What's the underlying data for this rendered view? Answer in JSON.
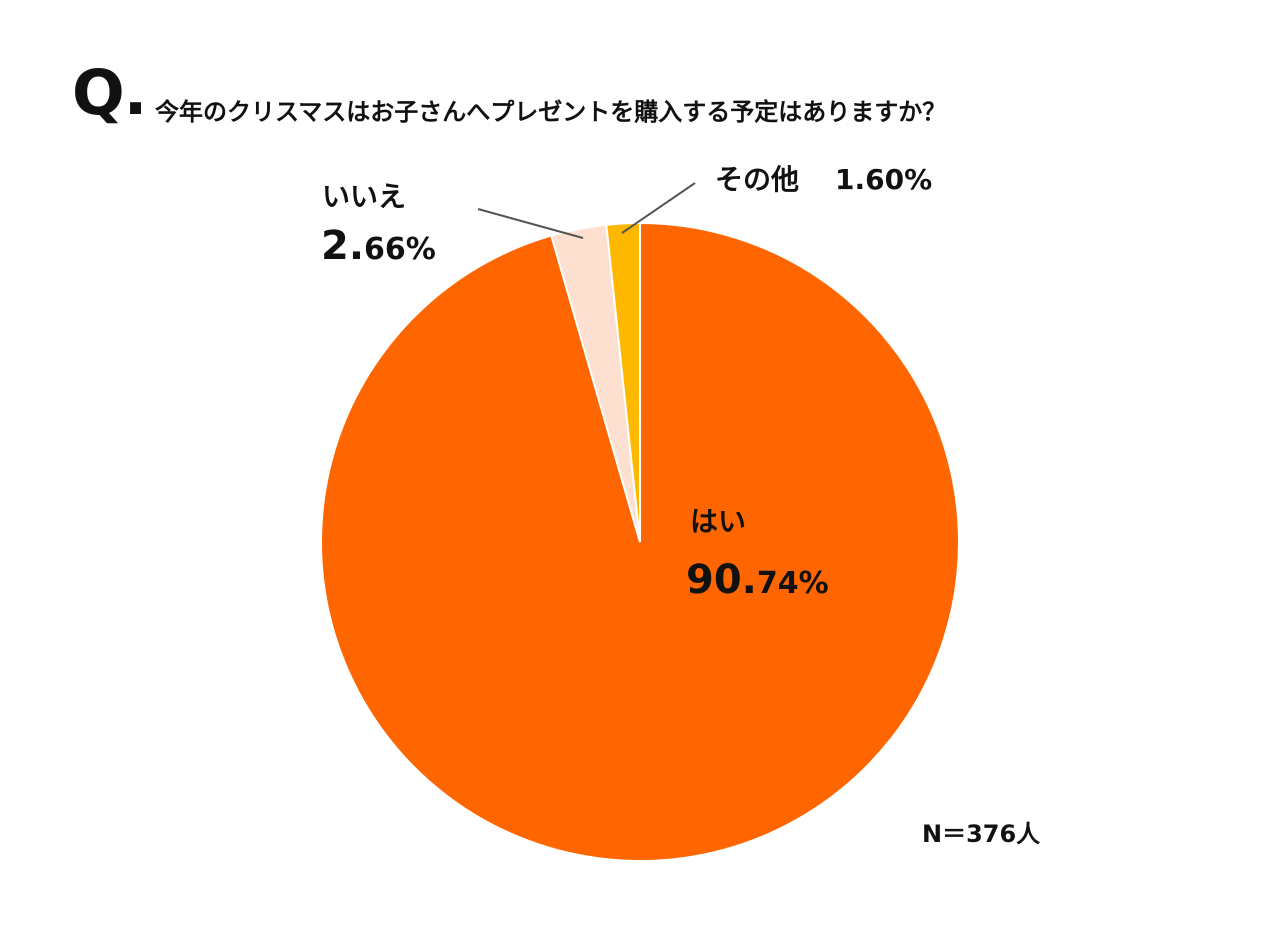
{
  "question": {
    "mark": "Q.",
    "text": "今年のクリスマスはお子さんへプレゼントを購入する予定はありますか？"
  },
  "chart_data": {
    "type": "pie",
    "start_angle_deg": 0,
    "direction": "clockwise",
    "slices": [
      {
        "label": "はい",
        "value": 90.74,
        "value_label_big": "90.",
        "value_label_small": "74%",
        "color": "#FF6600"
      },
      {
        "label": "いいえ",
        "value": 2.66,
        "value_label_big": "2.",
        "value_label_small": "66%",
        "color": "#FDE0D0"
      },
      {
        "label": "その他",
        "value": 1.6,
        "value_label": "1.60%",
        "color": "#FFB800"
      }
    ]
  },
  "sample_size": "N＝376人"
}
